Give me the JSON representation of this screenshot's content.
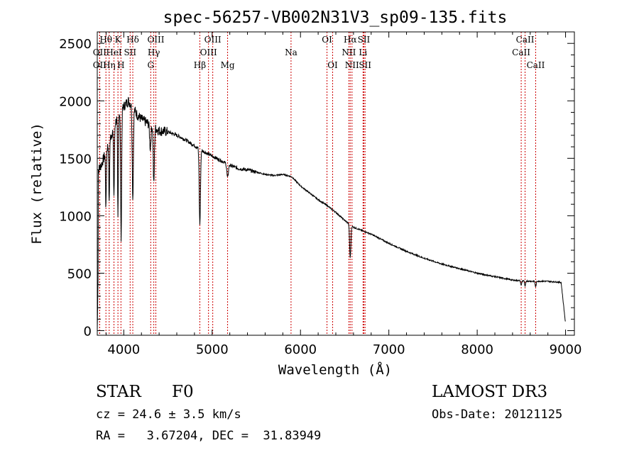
{
  "chart_data": {
    "type": "line",
    "title": "spec-56257-VB002N31V3_sp09-135.fits",
    "xlabel": "Wavelength (Å)",
    "ylabel": "Flux (relative)",
    "xlim": [
      3700,
      9100
    ],
    "ylim": [
      -40,
      2600
    ],
    "x_ticks": [
      4000,
      5000,
      6000,
      7000,
      8000,
      9000
    ],
    "x_tick_labels": [
      "4000",
      "5000",
      "6000",
      "7000",
      "8000",
      "9000"
    ],
    "y_ticks": [
      0,
      500,
      1000,
      1500,
      2000,
      2500
    ],
    "y_tick_labels": [
      "0",
      "500",
      "1000",
      "1500",
      "2000",
      "2500"
    ],
    "continuum": [
      [
        3700,
        1380
      ],
      [
        3750,
        1450
      ],
      [
        3800,
        1560
      ],
      [
        3850,
        1680
      ],
      [
        3900,
        1800
      ],
      [
        3950,
        1900
      ],
      [
        4000,
        1950
      ],
      [
        4050,
        2000
      ],
      [
        4100,
        1950
      ],
      [
        4150,
        1880
      ],
      [
        4200,
        1840
      ],
      [
        4300,
        1790
      ],
      [
        4400,
        1740
      ],
      [
        4500,
        1730
      ],
      [
        4600,
        1700
      ],
      [
        4700,
        1660
      ],
      [
        4800,
        1610
      ],
      [
        4900,
        1560
      ],
      [
        5000,
        1520
      ],
      [
        5100,
        1480
      ],
      [
        5200,
        1440
      ],
      [
        5300,
        1410
      ],
      [
        5400,
        1400
      ],
      [
        5500,
        1380
      ],
      [
        5600,
        1360
      ],
      [
        5700,
        1350
      ],
      [
        5800,
        1360
      ],
      [
        5900,
        1340
      ],
      [
        6000,
        1260
      ],
      [
        6100,
        1200
      ],
      [
        6200,
        1140
      ],
      [
        6300,
        1090
      ],
      [
        6400,
        1030
      ],
      [
        6500,
        960
      ],
      [
        6600,
        900
      ],
      [
        6700,
        870
      ],
      [
        6800,
        840
      ],
      [
        7000,
        760
      ],
      [
        7200,
        690
      ],
      [
        7400,
        630
      ],
      [
        7600,
        580
      ],
      [
        7800,
        540
      ],
      [
        8000,
        500
      ],
      [
        8200,
        470
      ],
      [
        8400,
        440
      ],
      [
        8600,
        430
      ],
      [
        8800,
        430
      ],
      [
        8950,
        420
      ],
      [
        9000,
        60
      ]
    ],
    "absorption_features": [
      {
        "center": 3798,
        "depth": 500,
        "width": 6
      },
      {
        "center": 3835,
        "depth": 550,
        "width": 6
      },
      {
        "center": 3889,
        "depth": 600,
        "width": 7
      },
      {
        "center": 3934,
        "depth": 900,
        "width": 6
      },
      {
        "center": 3970,
        "depth": 1100,
        "width": 8
      },
      {
        "center": 4102,
        "depth": 800,
        "width": 9
      },
      {
        "center": 4300,
        "depth": 200,
        "width": 10
      },
      {
        "center": 4340,
        "depth": 500,
        "width": 9
      },
      {
        "center": 4861,
        "depth": 650,
        "width": 10
      },
      {
        "center": 5175,
        "depth": 120,
        "width": 12
      },
      {
        "center": 6563,
        "depth": 290,
        "width": 10
      },
      {
        "center": 8498,
        "depth": 40,
        "width": 8
      },
      {
        "center": 8542,
        "depth": 50,
        "width": 8
      },
      {
        "center": 8662,
        "depth": 50,
        "width": 8
      }
    ],
    "spectral_lines": [
      {
        "name": "Hθ",
        "wave": 3798,
        "row": 0
      },
      {
        "name": "OII",
        "wave": 3727,
        "row": 1
      },
      {
        "name": "OII",
        "wave": 3727,
        "row": 2
      },
      {
        "name": "Hη",
        "wave": 3835,
        "row": 2
      },
      {
        "name": "HeI",
        "wave": 3889,
        "row": 1
      },
      {
        "name": "K",
        "wave": 3934,
        "row": 0
      },
      {
        "name": "H",
        "wave": 3968,
        "row": 2
      },
      {
        "name": "SII",
        "wave": 4072,
        "row": 1
      },
      {
        "name": "Hδ",
        "wave": 4102,
        "row": 0
      },
      {
        "name": "OIII",
        "wave": 4363,
        "row": 0
      },
      {
        "name": "Hγ",
        "wave": 4340,
        "row": 1
      },
      {
        "name": "G",
        "wave": 4305,
        "row": 2
      },
      {
        "name": "Hβ",
        "wave": 4861,
        "row": 2
      },
      {
        "name": "OIII",
        "wave": 5007,
        "row": 0
      },
      {
        "name": "OIII",
        "wave": 4959,
        "row": 1
      },
      {
        "name": "Mg",
        "wave": 5175,
        "row": 2
      },
      {
        "name": "Na",
        "wave": 5893,
        "row": 1
      },
      {
        "name": "OI",
        "wave": 6300,
        "row": 0
      },
      {
        "name": "OI",
        "wave": 6364,
        "row": 2
      },
      {
        "name": "Hα",
        "wave": 6563,
        "row": 0
      },
      {
        "name": "NII",
        "wave": 6548,
        "row": 1
      },
      {
        "name": "NII",
        "wave": 6583,
        "row": 2
      },
      {
        "name": "SII",
        "wave": 6717,
        "row": 0
      },
      {
        "name": "Li",
        "wave": 6708,
        "row": 1
      },
      {
        "name": "SII",
        "wave": 6731,
        "row": 2
      },
      {
        "name": "CaII",
        "wave": 8542,
        "row": 0
      },
      {
        "name": "CaII",
        "wave": 8498,
        "row": 1
      },
      {
        "name": "CaII",
        "wave": 8662,
        "row": 2
      }
    ]
  },
  "info": {
    "object_class": "STAR",
    "subclass": "F0",
    "survey": "LAMOST DR3",
    "redshift": "cz = 24.6 ± 3.5 km/s",
    "obs_date": "Obs-Date: 20121125",
    "coords": "RA =   3.67204, DEC =  31.83949"
  }
}
